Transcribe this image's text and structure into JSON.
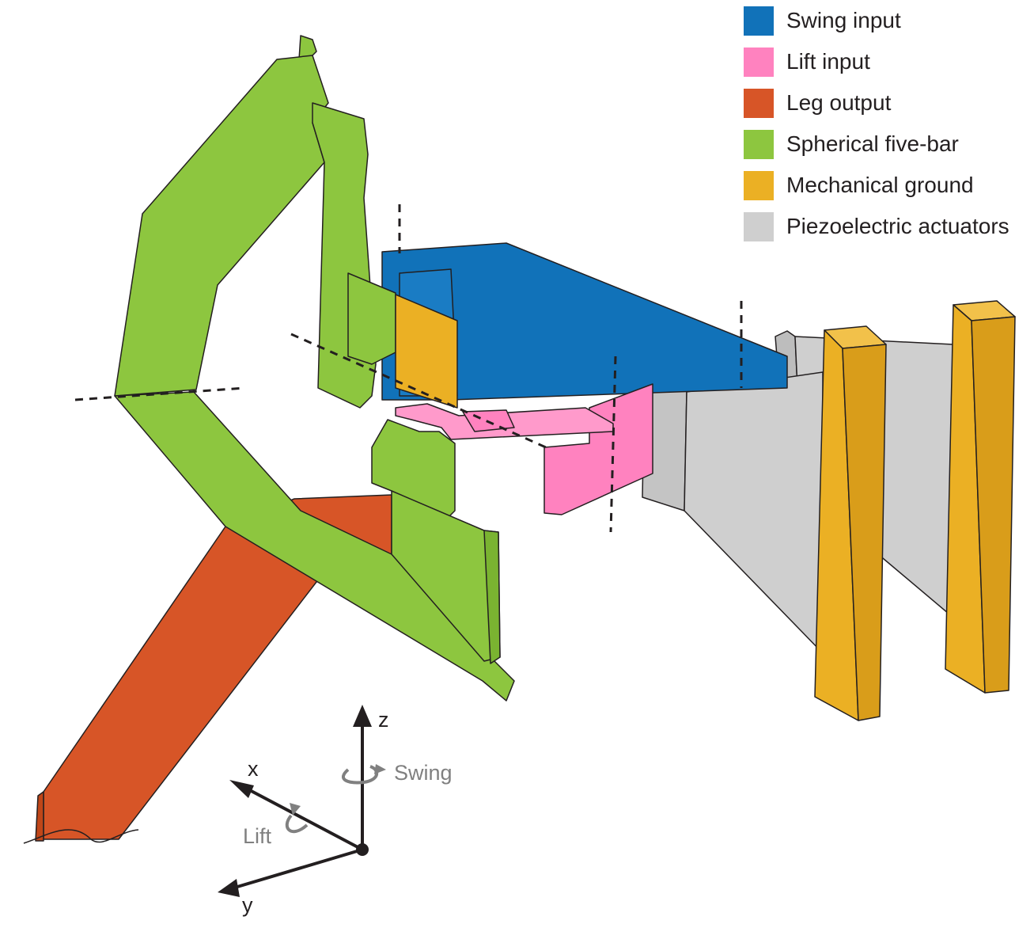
{
  "legend": [
    {
      "label": "Swing input",
      "color": "#1172b9"
    },
    {
      "label": "Lift input",
      "color": "#ff82bf"
    },
    {
      "label": "Leg output",
      "color": "#d75527"
    },
    {
      "label": "Spherical five-bar",
      "color": "#8dc63f"
    },
    {
      "label": "Mechanical ground",
      "color": "#ebb024"
    },
    {
      "label": "Piezoelectric actuators",
      "color": "#cfcfcf"
    }
  ],
  "axes": {
    "z": "z",
    "x": "x",
    "y": "y",
    "swing": "Swing",
    "lift": "Lift"
  }
}
